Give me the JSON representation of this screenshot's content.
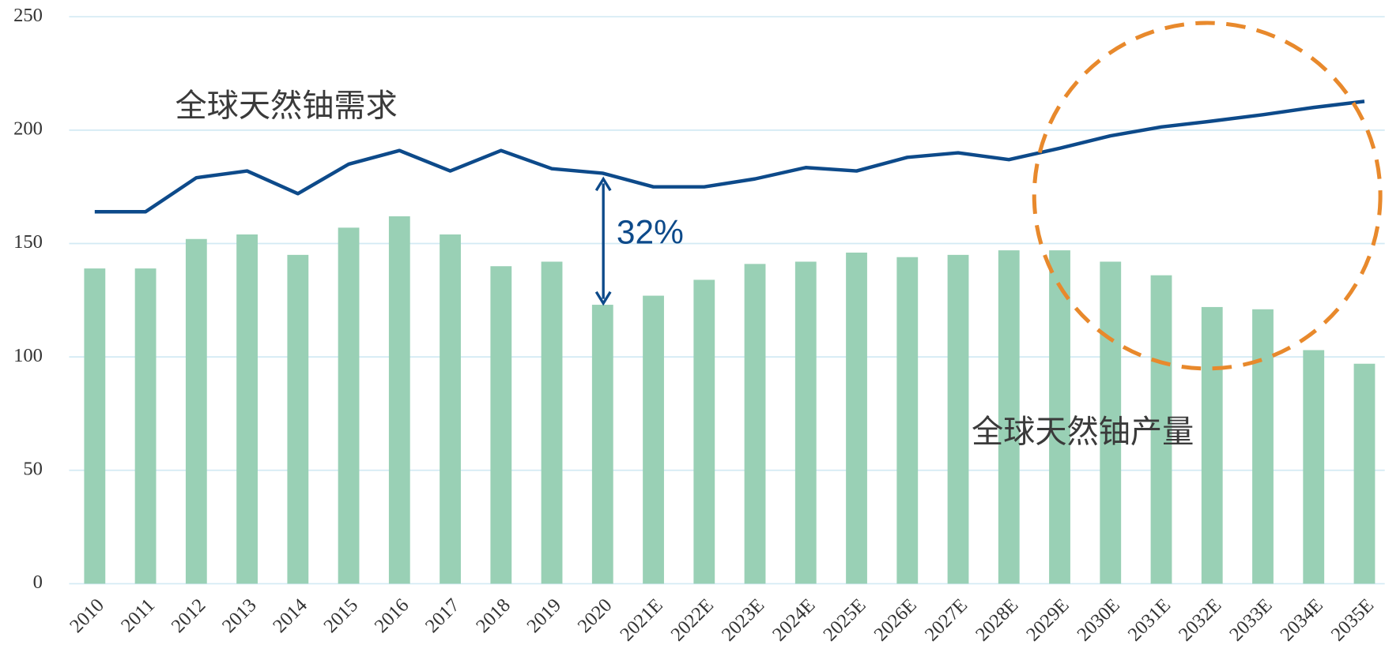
{
  "chart_data": {
    "type": "bar_line",
    "categories": [
      "2010",
      "2011",
      "2012",
      "2013",
      "2014",
      "2015",
      "2016",
      "2017",
      "2018",
      "2019",
      "2020",
      "2021E",
      "2022E",
      "2023E",
      "2024E",
      "2025E",
      "2026E",
      "2027E",
      "2028E",
      "2029E",
      "2030E",
      "2031E",
      "2032E",
      "2033E",
      "2034E",
      "2035E"
    ],
    "series": [
      {
        "name": "全球天然铀产量",
        "type": "bar",
        "color": "#99d0b5",
        "values": [
          139,
          139,
          152,
          154,
          145,
          157,
          162,
          154,
          140,
          142,
          123,
          127,
          134,
          141,
          142,
          146,
          144,
          145,
          147,
          147,
          142,
          136,
          122,
          121,
          103,
          97
        ]
      },
      {
        "name": "全球天然铀需求",
        "type": "line",
        "color": "#0d4a8a",
        "values": [
          164,
          164,
          179,
          182,
          172,
          185,
          191,
          182,
          191,
          183,
          181,
          175,
          175,
          178.5,
          183.5,
          182,
          188,
          190,
          187,
          192,
          197.5,
          201.4,
          204,
          206.8,
          210,
          212.7
        ]
      }
    ],
    "annotations": [
      "32%"
    ],
    "ylim": [
      0,
      250
    ],
    "yticks": [
      0,
      50,
      100,
      150,
      200,
      250
    ],
    "grid": true
  }
}
